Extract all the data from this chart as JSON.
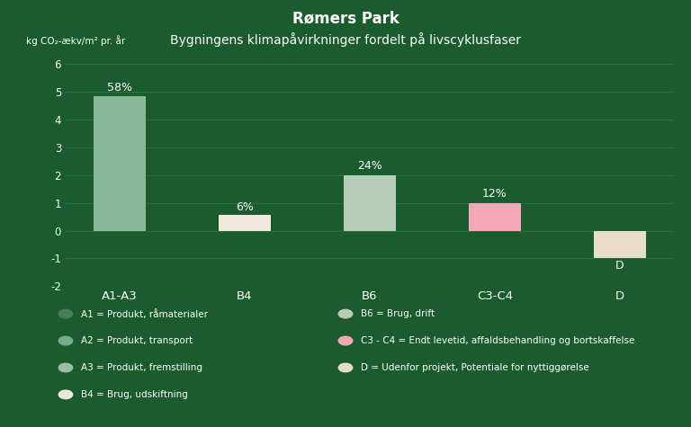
{
  "title": "Rømers Park",
  "subtitle": "Bygningens klimapåvirkninger fordelt på livscyklusfaser",
  "ylabel": "kg CO₂-ækv/m² pr. år",
  "background_color": "#1a5c2e",
  "text_color": "#ffffff",
  "grid_color": "#2d7040",
  "categories": [
    "A1-A3",
    "B4",
    "B6",
    "C3-C4",
    "D"
  ],
  "values": [
    4.83,
    0.58,
    2.0,
    1.0,
    -1.0
  ],
  "bar_colors": [
    "#8ab89a",
    "#f0e8dc",
    "#b5cdb8",
    "#f4a7b9",
    "#e8ddc8"
  ],
  "labels": [
    "58%",
    "6%",
    "24%",
    "12%",
    "D"
  ],
  "label_offsets": [
    0.12,
    0.06,
    0.12,
    0.12,
    0.06
  ],
  "ylim": [
    -2,
    6
  ],
  "yticks": [
    -2,
    -1,
    0,
    1,
    2,
    3,
    4,
    5,
    6
  ],
  "legend_items_left": [
    {
      "color": "#4a7c59",
      "label": "A1 = Produkt, råmaterialer"
    },
    {
      "color": "#7aab8a",
      "label": "A2 = Produkt, transport"
    },
    {
      "color": "#9abda8",
      "label": "A3 = Produkt, fremstilling"
    },
    {
      "color": "#ede8df",
      "label": "B4 = Brug, udskiftning"
    }
  ],
  "legend_items_right": [
    {
      "color": "#b5cdb8",
      "label": "B6 = Brug, drift"
    },
    {
      "color": "#f4a7b9",
      "label": "C3 - C4 = Endt levetid, affaldsbehandling og bortskaffelse"
    },
    {
      "color": "#e8ddc8",
      "label": "D = Udenfor projekt, Potentiale for nyttiggørelse"
    }
  ]
}
